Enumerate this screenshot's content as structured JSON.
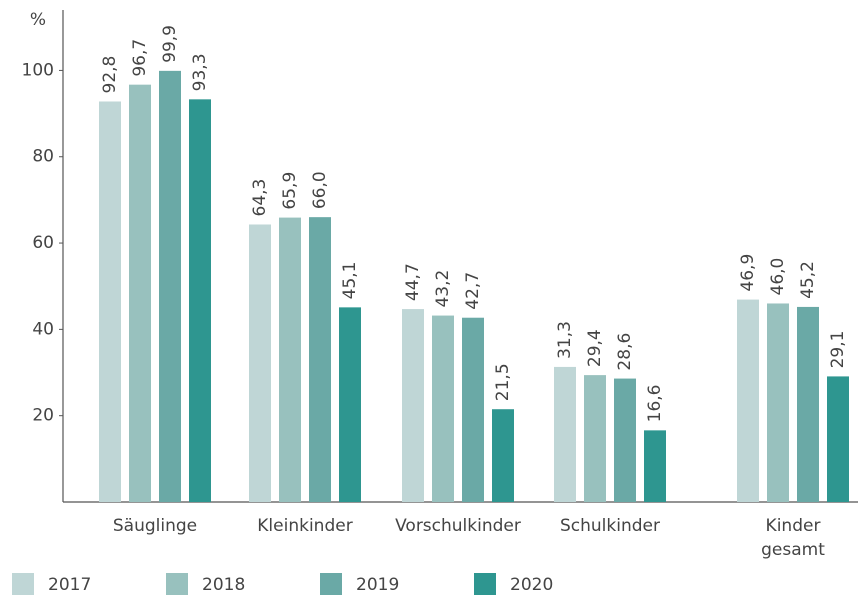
{
  "chart_data": {
    "type": "bar",
    "ylabel": "%",
    "categories": [
      "Säuglinge",
      "Kleinkinder",
      "Vorschulkinder",
      "Schulkinder",
      "Kinder\ngesamt"
    ],
    "series": [
      {
        "name": "2017",
        "color": "#bfd6d6",
        "values": [
          92.8,
          64.3,
          44.7,
          31.3,
          46.9
        ],
        "value_labels": [
          "92,8",
          "64,3",
          "44,7",
          "31,3",
          "46,9"
        ]
      },
      {
        "name": "2018",
        "color": "#98c1be",
        "values": [
          96.7,
          65.9,
          43.2,
          29.4,
          46.0
        ],
        "value_labels": [
          "96,7",
          "65,9",
          "43,2",
          "29,4",
          "46,0"
        ]
      },
      {
        "name": "2019",
        "color": "#6aa9a6",
        "values": [
          99.9,
          66.0,
          42.7,
          28.6,
          45.2
        ],
        "value_labels": [
          "99,9",
          "66,0",
          "42,7",
          "28,6",
          "45,2"
        ]
      },
      {
        "name": "2020",
        "color": "#2e9690",
        "values": [
          93.3,
          45.1,
          21.5,
          16.6,
          29.1
        ],
        "value_labels": [
          "93,3",
          "45,1",
          "21,5",
          "16,6",
          "29,1"
        ]
      }
    ],
    "ylim": [
      0,
      114
    ],
    "yticks": [
      20,
      40,
      60,
      80,
      100
    ]
  }
}
